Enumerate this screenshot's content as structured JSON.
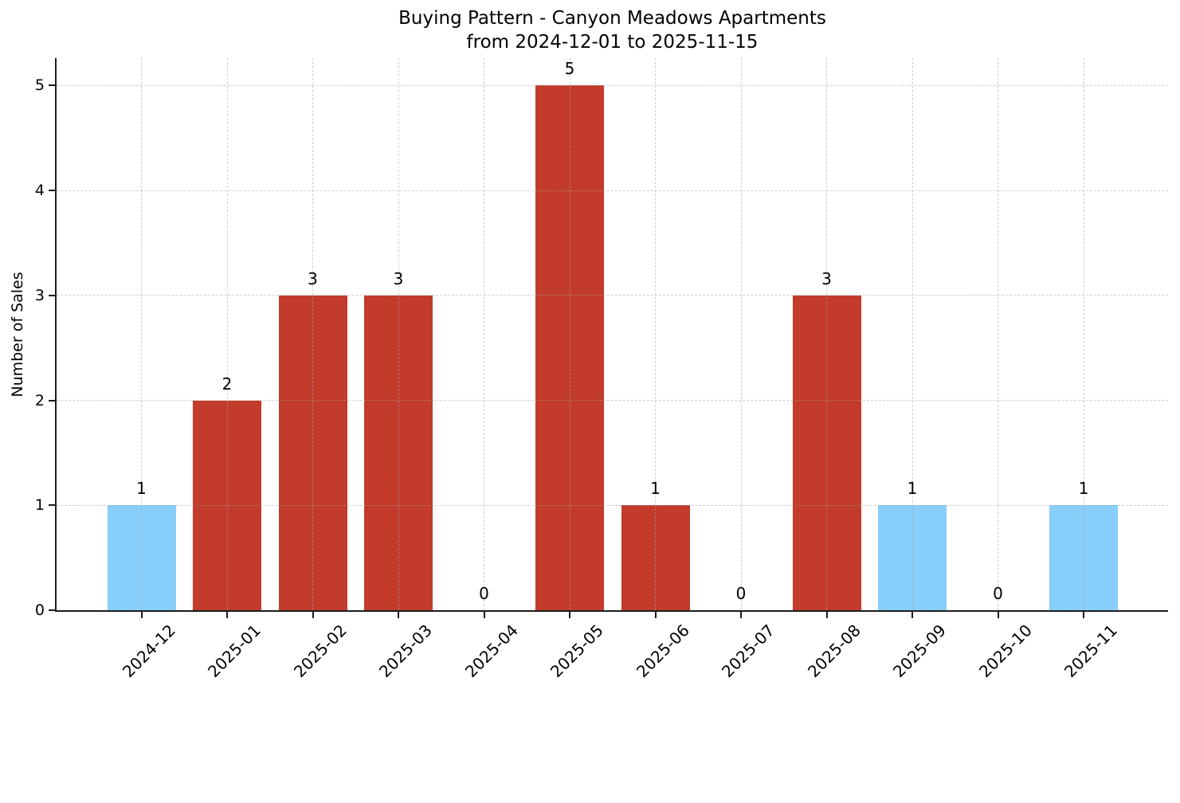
{
  "figure": {
    "title_line1": "Buying Pattern - Canyon Meadows Apartments",
    "title_line2": "from 2024-12-01 to 2025-11-15"
  },
  "chart_data": {
    "type": "bar",
    "title": "Buying Pattern - Canyon Meadows Apartments\nfrom 2024-12-01 to 2025-11-15",
    "ylabel": "Number of Sales",
    "categories": [
      "2024-12",
      "2025-01",
      "2025-02",
      "2025-03",
      "2025-04",
      "2025-05",
      "2025-06",
      "2025-07",
      "2025-08",
      "2025-09",
      "2025-10",
      "2025-11"
    ],
    "values": [
      1,
      2,
      3,
      3,
      0,
      5,
      1,
      0,
      3,
      1,
      0,
      1
    ],
    "bar_value_labels": [
      "1",
      "2",
      "3",
      "3",
      "0",
      "5",
      "1",
      "0",
      "3",
      "1",
      "0",
      "1"
    ],
    "bar_colors": [
      "skyblue",
      "red",
      "red",
      "red",
      null,
      "red",
      "red",
      null,
      "red",
      "skyblue",
      null,
      "skyblue"
    ],
    "palette": {
      "red": "#c23b2b",
      "skyblue": "#87cefa"
    },
    "yticks": [
      0,
      1,
      2,
      3,
      4,
      5
    ],
    "ylim": [
      0,
      5.26
    ],
    "xtick_rotation": 45,
    "grid": "dashed, drawn above bars",
    "legend": "none"
  }
}
